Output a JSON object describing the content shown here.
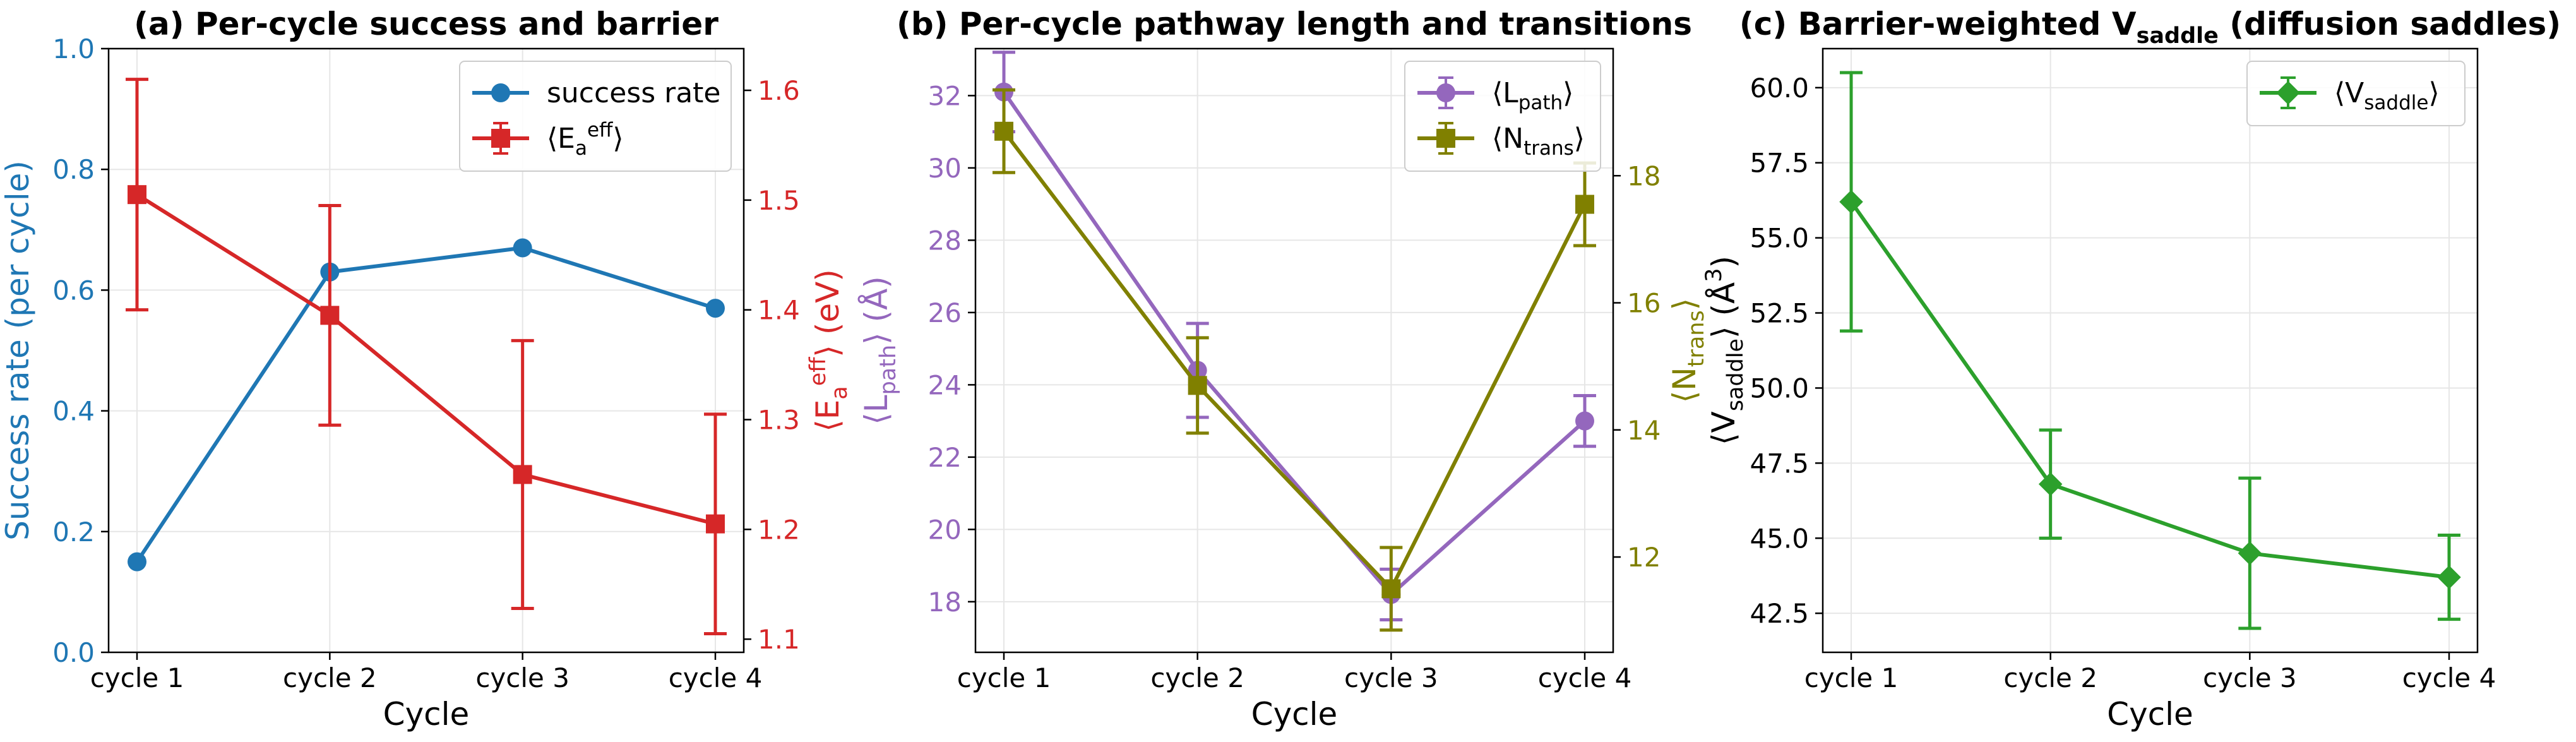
{
  "colors": {
    "blue": "#1f77b4",
    "red": "#d62728",
    "purple": "#9467bd",
    "olive": "#808000",
    "green": "#2ca02c",
    "grid": "#e6e6e6",
    "axis": "#000000"
  },
  "chart_data": [
    {
      "type": "line",
      "title": "(a) Per-cycle success and barrier",
      "xlabel": "Cycle",
      "categories": [
        "cycle 1",
        "cycle 2",
        "cycle 3",
        "cycle 4"
      ],
      "left_axis": {
        "label": "Success rate (per cycle)",
        "ylim": [
          0.0,
          1.0
        ],
        "ticks": [
          0.0,
          0.2,
          0.4,
          0.6,
          0.8,
          1.0
        ],
        "tick_labels": [
          "0.0",
          "0.2",
          "0.4",
          "0.6",
          "0.8",
          "1.0"
        ],
        "color": "blue"
      },
      "right_axis": {
        "label_main": "⟨E",
        "label_sub": "a",
        "label_sup": "eff",
        "label_end": "⟩ (eV)",
        "ylim": [
          1.088,
          1.638
        ],
        "ticks": [
          1.1,
          1.2,
          1.3,
          1.4,
          1.5,
          1.6
        ],
        "tick_labels": [
          "1.1",
          "1.2",
          "1.3",
          "1.4",
          "1.5",
          "1.6"
        ],
        "color": "red"
      },
      "series": [
        {
          "name": "success rate",
          "axis": "left",
          "color": "blue",
          "marker": "circle",
          "values": [
            0.15,
            0.63,
            0.67,
            0.57
          ],
          "errors": null
        },
        {
          "name_main": "⟨E",
          "name_sub": "a",
          "name_sup": "eff",
          "name_end": "⟩",
          "axis": "right",
          "color": "red",
          "marker": "square",
          "values": [
            1.505,
            1.395,
            1.25,
            1.205
          ],
          "errors": [
            0.105,
            0.1,
            0.122,
            0.1
          ]
        }
      ],
      "legend": "top-right",
      "grid": true
    },
    {
      "type": "line",
      "title": "(b) Per-cycle pathway length and transitions",
      "xlabel": "Cycle",
      "categories": [
        "cycle 1",
        "cycle 2",
        "cycle 3",
        "cycle 4"
      ],
      "left_axis": {
        "label_main": "⟨L",
        "label_sub": "path",
        "label_end": "⟩ (Å)",
        "ylim": [
          16.6,
          33.3
        ],
        "ticks": [
          18,
          20,
          22,
          24,
          26,
          28,
          30,
          32
        ],
        "tick_labels": [
          "18",
          "20",
          "22",
          "24",
          "26",
          "28",
          "30",
          "32"
        ],
        "color": "purple"
      },
      "right_axis": {
        "label_main": "⟨N",
        "label_sub": "trans",
        "label_end": "⟩",
        "ylim": [
          10.5,
          20.0
        ],
        "ticks": [
          12,
          14,
          16,
          18
        ],
        "tick_labels": [
          "12",
          "14",
          "16",
          "18"
        ],
        "color": "olive"
      },
      "series": [
        {
          "name_main": "⟨L",
          "name_sub": "path",
          "name_end": "⟩",
          "axis": "left",
          "color": "purple",
          "marker": "circle",
          "values": [
            32.1,
            24.4,
            18.2,
            23.0
          ],
          "errors": [
            1.1,
            1.3,
            0.7,
            0.7
          ]
        },
        {
          "name_main": "⟨N",
          "name_sub": "trans",
          "name_end": "⟩",
          "axis": "right",
          "color": "olive",
          "marker": "square",
          "values": [
            18.7,
            14.7,
            11.5,
            17.55
          ],
          "errors": [
            0.65,
            0.75,
            0.65,
            0.65
          ]
        }
      ],
      "legend": "top-right",
      "grid": true
    },
    {
      "type": "line",
      "title_main": "(c) Barrier-weighted V",
      "title_sub": "saddle",
      "title_end": " (diffusion saddles)",
      "xlabel": "Cycle",
      "categories": [
        "cycle 1",
        "cycle 2",
        "cycle 3",
        "cycle 4"
      ],
      "left_axis": {
        "label_main": "⟨V",
        "label_sub": "saddle",
        "label_end": "⟩ (Å",
        "label_sup": "3",
        "label_close": ")",
        "ylim": [
          41.2,
          61.3
        ],
        "ticks": [
          42.5,
          45.0,
          47.5,
          50.0,
          52.5,
          55.0,
          57.5,
          60.0
        ],
        "tick_labels": [
          "42.5",
          "45.0",
          "47.5",
          "50.0",
          "52.5",
          "55.0",
          "57.5",
          "60.0"
        ],
        "color": "axis"
      },
      "series": [
        {
          "name_main": "⟨V",
          "name_sub": "saddle",
          "name_end": "⟩",
          "axis": "left",
          "color": "green",
          "marker": "diamond",
          "values": [
            56.2,
            46.8,
            44.5,
            43.7
          ],
          "errors": [
            4.3,
            1.8,
            2.5,
            1.4
          ]
        }
      ],
      "legend": "top-right",
      "grid": true
    }
  ]
}
